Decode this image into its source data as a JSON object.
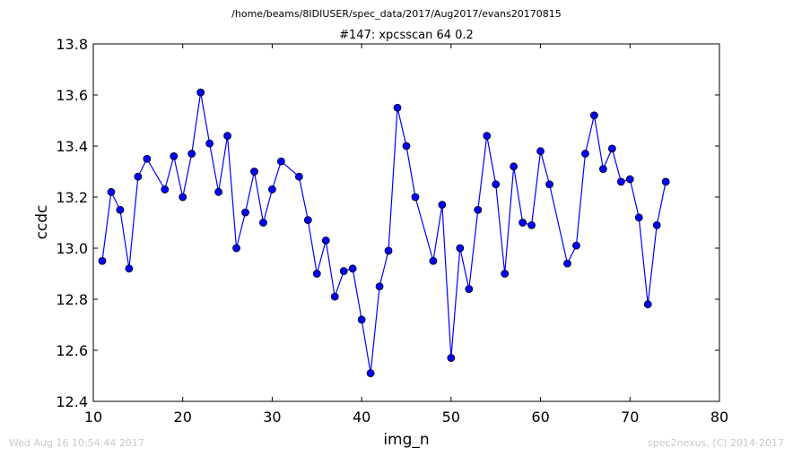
{
  "suptitle": "/home/beams/8IDIUSER/spec_data/2017/Aug2017/evans20170815",
  "footer": {
    "timestamp": "Wed Aug 16 10:54:44 2017",
    "credit": "spec2nexus, (C) 2014-2017"
  },
  "chart_data": {
    "type": "line",
    "title": "#147: xpcsscan 64 0.2",
    "xlabel": "img_n",
    "ylabel": "ccdc",
    "xlim": [
      10,
      80
    ],
    "ylim": [
      12.4,
      13.8
    ],
    "xticks": [
      "10",
      "20",
      "30",
      "40",
      "50",
      "60",
      "70",
      "80"
    ],
    "yticks": [
      "12.4",
      "12.6",
      "12.8",
      "13.0",
      "13.2",
      "13.4",
      "13.6",
      "13.8"
    ],
    "grid": false,
    "color": "#0000ff",
    "marker": "circle",
    "series": [
      {
        "x": [
          11,
          12,
          13,
          14,
          15,
          16,
          18,
          19,
          20,
          21,
          22,
          23,
          24,
          25,
          26,
          27,
          28,
          29,
          30,
          31,
          33,
          34,
          35,
          36,
          37,
          38,
          39,
          40,
          41,
          42,
          43,
          44,
          45,
          46,
          48,
          49,
          50,
          51,
          52,
          53,
          54,
          55,
          56,
          57,
          58,
          59,
          60,
          61,
          63,
          64,
          65,
          66,
          67,
          68,
          69,
          70,
          71,
          72,
          73,
          74
        ],
        "y": [
          12.95,
          13.22,
          13.15,
          12.92,
          13.28,
          13.35,
          13.23,
          13.36,
          13.2,
          13.37,
          13.61,
          13.41,
          13.22,
          13.44,
          13.0,
          13.14,
          13.3,
          13.1,
          13.23,
          13.34,
          13.28,
          13.11,
          12.9,
          13.03,
          12.81,
          12.91,
          12.92,
          12.72,
          12.51,
          12.85,
          12.99,
          13.55,
          13.4,
          13.2,
          12.95,
          13.17,
          12.57,
          13.0,
          12.84,
          13.15,
          13.44,
          13.25,
          12.9,
          13.32,
          13.1,
          13.09,
          13.38,
          13.25,
          12.94,
          13.01,
          13.37,
          13.52,
          13.31,
          13.39,
          13.26,
          13.27,
          13.12,
          12.78,
          13.09,
          13.26
        ]
      }
    ]
  }
}
